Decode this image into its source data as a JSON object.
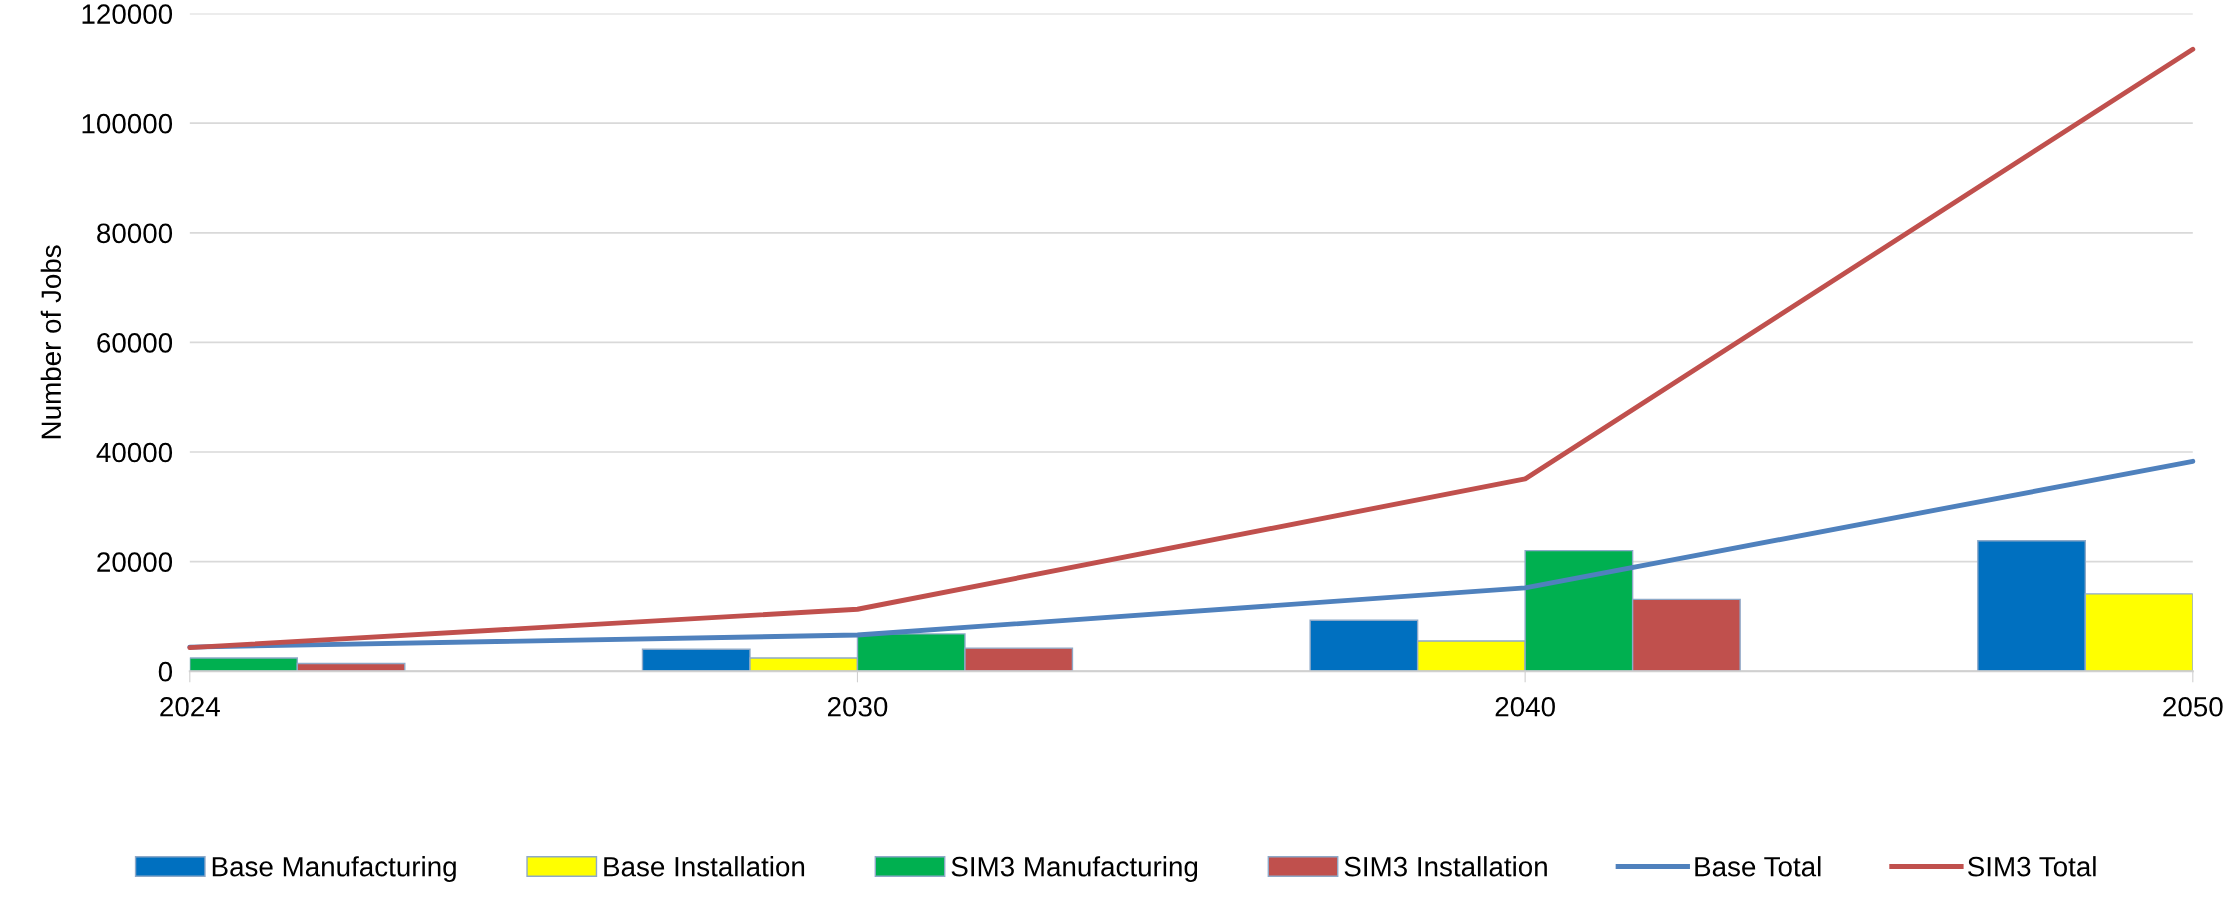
{
  "chart_data": {
    "type": "bar",
    "ylabel": "Number of Jobs",
    "categories": [
      "2024",
      "2030",
      "2040",
      "2050"
    ],
    "series": [
      {
        "name": "Base Manufacturing",
        "color": "#0070c0",
        "values": [
          null,
          4000,
          9300,
          23800
        ]
      },
      {
        "name": "Base Installation",
        "color": "#ffff00",
        "values": [
          null,
          2400,
          5500,
          14100
        ]
      },
      {
        "name": "SIM3 Manufacturing",
        "color": "#00b050",
        "values": [
          2400,
          6800,
          22000,
          null
        ]
      },
      {
        "name": "SIM3 Installation",
        "color": "#c0504d",
        "values": [
          1400,
          4200,
          13100,
          null
        ]
      },
      {
        "name": "Base Total",
        "type": "line",
        "color": "#4f81bd",
        "values": [
          4400,
          6600,
          15200,
          38300
        ]
      },
      {
        "name": "SIM3 Total",
        "type": "line",
        "color": "#c0504d",
        "values": [
          4300,
          11300,
          35100,
          113500
        ]
      }
    ],
    "ylim": [
      0,
      120000
    ],
    "yticks": [
      0,
      20000,
      40000,
      60000,
      80000,
      100000,
      120000
    ],
    "grid": "y",
    "legend": "bottom"
  }
}
